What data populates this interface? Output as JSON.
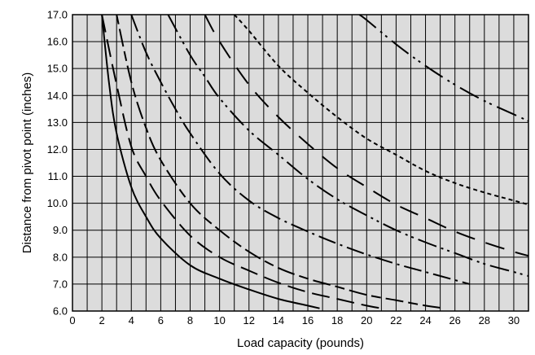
{
  "chart_data": {
    "type": "line",
    "title": "",
    "xlabel": "Load capacity (pounds)",
    "ylabel": "Distance from pivot point (inches)",
    "xlim": [
      0,
      31
    ],
    "ylim": [
      6.0,
      17.0
    ],
    "xticks": [
      0,
      2,
      4,
      6,
      8,
      10,
      12,
      14,
      16,
      18,
      20,
      22,
      24,
      26,
      28,
      30
    ],
    "xtick_labels": [
      "0",
      "2",
      "4",
      "6",
      "8",
      "10",
      "12",
      "14",
      "16",
      "18",
      "20",
      "22",
      "24",
      "26",
      "28",
      "30"
    ],
    "yticks": [
      6.0,
      7.0,
      8.0,
      9.0,
      10.0,
      11.0,
      12.0,
      13.0,
      14.0,
      15.0,
      16.0,
      17.0
    ],
    "ytick_labels": [
      "6.0",
      "7.0",
      "8.0",
      "9.0",
      "10.0",
      "11.0",
      "12.0",
      "13.0",
      "14.0",
      "15.0",
      "16.0",
      "17.0"
    ],
    "grid": true,
    "legend": "none",
    "plot_background": "#dcdcdc",
    "line_color": "#000000",
    "series": [
      {
        "style": "solid",
        "points": [
          [
            2.0,
            17.0
          ],
          [
            2.5,
            14.4
          ],
          [
            3.0,
            12.6
          ],
          [
            4.0,
            10.6
          ],
          [
            5.0,
            9.5
          ],
          [
            6.0,
            8.7
          ],
          [
            8.0,
            7.7
          ],
          [
            10.0,
            7.2
          ],
          [
            12.0,
            6.8
          ],
          [
            14.0,
            6.45
          ],
          [
            16.0,
            6.2
          ],
          [
            16.8,
            6.1
          ]
        ]
      },
      {
        "style": "long-dash",
        "points": [
          [
            2.0,
            17.0
          ],
          [
            3.0,
            14.4
          ],
          [
            4.0,
            12.1
          ],
          [
            5.0,
            11.0
          ],
          [
            6.0,
            10.1
          ],
          [
            8.0,
            8.8
          ],
          [
            10.0,
            8.0
          ],
          [
            12.0,
            7.5
          ],
          [
            14.0,
            7.05
          ],
          [
            16.0,
            6.7
          ],
          [
            18.0,
            6.45
          ],
          [
            20.0,
            6.2
          ],
          [
            21.0,
            6.1
          ]
        ]
      },
      {
        "style": "short-long-dash",
        "points": [
          [
            3.0,
            17.0
          ],
          [
            4.0,
            14.5
          ],
          [
            5.0,
            12.8
          ],
          [
            6.0,
            11.6
          ],
          [
            8.0,
            10.0
          ],
          [
            10.0,
            9.0
          ],
          [
            12.0,
            8.2
          ],
          [
            14.0,
            7.6
          ],
          [
            16.0,
            7.2
          ],
          [
            18.0,
            6.9
          ],
          [
            20.0,
            6.6
          ],
          [
            22.0,
            6.4
          ],
          [
            24.0,
            6.2
          ],
          [
            25.3,
            6.1
          ]
        ]
      },
      {
        "style": "long-dash-dot",
        "points": [
          [
            4.0,
            17.0
          ],
          [
            5.0,
            15.6
          ],
          [
            6.0,
            14.5
          ],
          [
            7.0,
            13.5
          ],
          [
            8.0,
            12.6
          ],
          [
            10.0,
            11.1
          ],
          [
            12.0,
            10.1
          ],
          [
            14.0,
            9.45
          ],
          [
            16.0,
            8.95
          ],
          [
            18.0,
            8.5
          ],
          [
            20.0,
            8.1
          ],
          [
            22.0,
            7.75
          ],
          [
            24.0,
            7.45
          ],
          [
            26.0,
            7.15
          ],
          [
            27.0,
            7.0
          ]
        ]
      },
      {
        "style": "long-dash-dot-dot",
        "points": [
          [
            6.5,
            17.0
          ],
          [
            8.0,
            15.5
          ],
          [
            9.0,
            14.7
          ],
          [
            10.0,
            13.9
          ],
          [
            12.0,
            12.7
          ],
          [
            14.0,
            11.8
          ],
          [
            16.0,
            10.9
          ],
          [
            18.0,
            10.15
          ],
          [
            20.0,
            9.55
          ],
          [
            22.0,
            9.0
          ],
          [
            24.0,
            8.55
          ],
          [
            26.0,
            8.15
          ],
          [
            28.0,
            7.75
          ],
          [
            30.0,
            7.45
          ],
          [
            31.0,
            7.3
          ]
        ]
      },
      {
        "style": "long-gap-dash",
        "points": [
          [
            9.0,
            17.0
          ],
          [
            10.0,
            16.0
          ],
          [
            12.0,
            14.4
          ],
          [
            14.0,
            13.2
          ],
          [
            16.0,
            12.2
          ],
          [
            18.0,
            11.3
          ],
          [
            20.0,
            10.6
          ],
          [
            22.0,
            9.95
          ],
          [
            24.0,
            9.45
          ],
          [
            26.0,
            8.95
          ],
          [
            28.0,
            8.55
          ],
          [
            30.0,
            8.2
          ],
          [
            31.0,
            8.05
          ]
        ]
      },
      {
        "style": "short-dash",
        "points": [
          [
            11.0,
            17.0
          ],
          [
            12.0,
            16.4
          ],
          [
            14.0,
            15.1
          ],
          [
            16.0,
            14.1
          ],
          [
            18.0,
            13.2
          ],
          [
            20.0,
            12.4
          ],
          [
            22.0,
            11.8
          ],
          [
            24.0,
            11.2
          ],
          [
            26.0,
            10.75
          ],
          [
            28.0,
            10.4
          ],
          [
            30.0,
            10.1
          ],
          [
            31.0,
            9.95
          ]
        ]
      },
      {
        "style": "dash-dot-dot",
        "points": [
          [
            19.5,
            17.0
          ],
          [
            20.0,
            16.8
          ],
          [
            22.0,
            15.9
          ],
          [
            24.0,
            15.1
          ],
          [
            26.0,
            14.4
          ],
          [
            28.0,
            13.8
          ],
          [
            30.0,
            13.3
          ],
          [
            31.0,
            13.05
          ]
        ]
      }
    ]
  }
}
